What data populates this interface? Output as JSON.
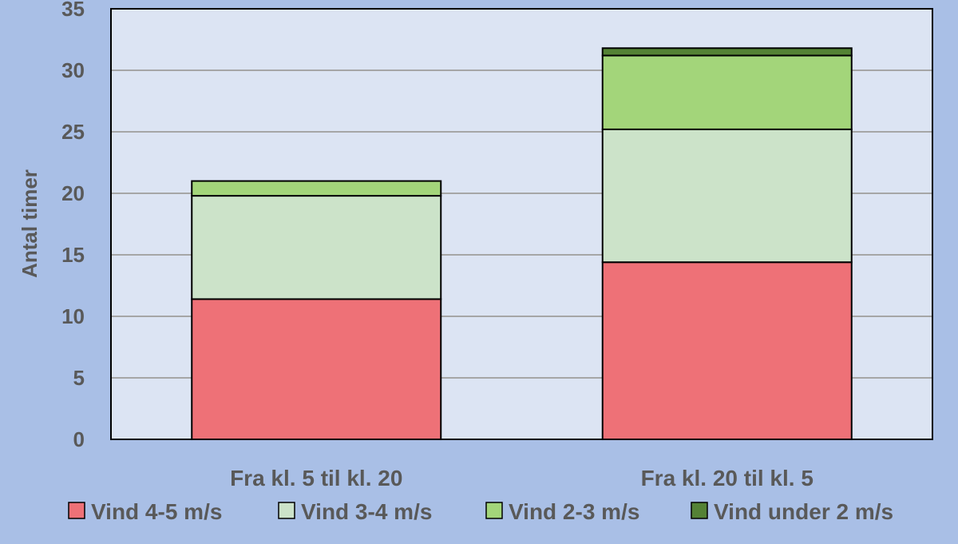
{
  "chart_data": {
    "type": "bar",
    "stacked": true,
    "categories": [
      "Fra kl. 5 til kl. 20",
      "Fra kl. 20 til kl. 5"
    ],
    "series": [
      {
        "name": "Vind 4-5 m/s",
        "color": "#ee7177",
        "values": [
          11.4,
          14.4
        ]
      },
      {
        "name": "Vind 3-4 m/s",
        "color": "#cce3c9",
        "values": [
          8.4,
          10.8
        ]
      },
      {
        "name": "Vind 2-3 m/s",
        "color": "#a3d57a",
        "values": [
          1.2,
          6.0
        ]
      },
      {
        "name": "Vind under 2 m/s",
        "color": "#548235",
        "values": [
          0,
          0.6
        ]
      }
    ],
    "ylabel": "Antal timer",
    "ylim": [
      0,
      35
    ],
    "yticks": [
      0,
      5,
      10,
      15,
      20,
      25,
      30,
      35
    ],
    "grid": true,
    "legend_position": "bottom",
    "plot_background": "#dce4f3",
    "page_background": "#a9bfe6"
  }
}
